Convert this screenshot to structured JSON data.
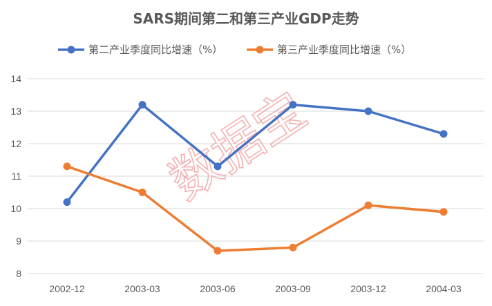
{
  "chart_data": {
    "type": "line",
    "title": "SARS期间第二和第三产业GDP走势",
    "categories": [
      "2002-12",
      "2003-03",
      "2003-06",
      "2003-09",
      "2003-12",
      "2004-03"
    ],
    "series": [
      {
        "name": "第二产业季度同比增速（%）",
        "color": "#4472C4",
        "values": [
          10.2,
          13.2,
          11.3,
          13.2,
          13.0,
          12.3
        ]
      },
      {
        "name": "第三产业季度同比增速（%）",
        "color": "#ED7D31",
        "values": [
          11.3,
          10.5,
          8.7,
          8.8,
          10.1,
          9.9
        ]
      }
    ],
    "ylim": [
      8,
      14
    ],
    "yticks": [
      8,
      9,
      10,
      11,
      12,
      13,
      14
    ],
    "grid": true,
    "legend_position": "top",
    "xlabel": "",
    "ylabel": ""
  },
  "watermark": "数据宝"
}
